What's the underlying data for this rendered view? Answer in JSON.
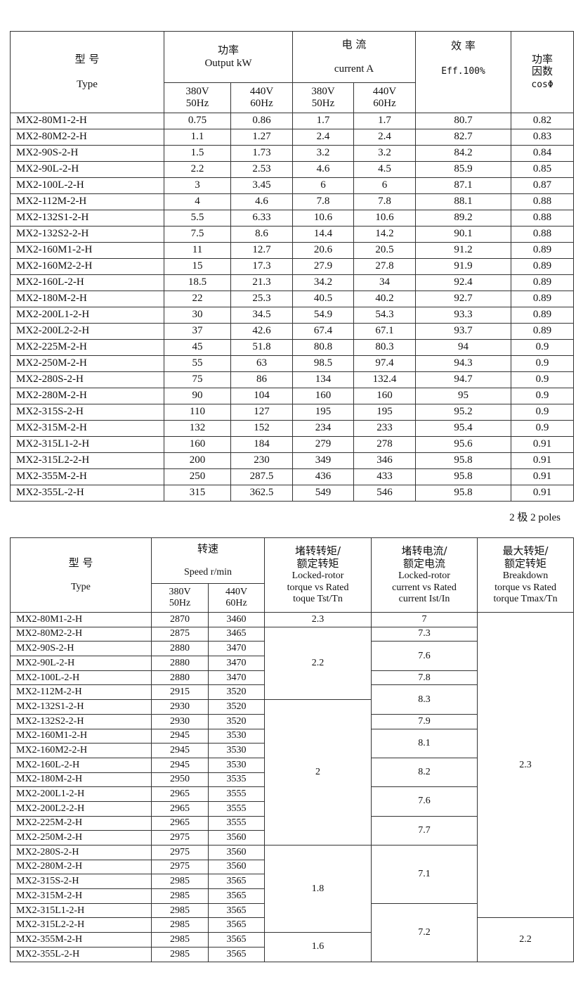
{
  "table1": {
    "headers": {
      "type_cn": "型 号",
      "type_en": "Type",
      "output_cn": "功率",
      "output_en": "Output  kW",
      "current_cn": "电 流",
      "current_en": "current    A",
      "eff_cn": "效 率",
      "eff_en": "Eff.100%",
      "pf_cn": "功率因数",
      "pf_en": "cosΦ",
      "v1": "380V",
      "f1": "50Hz",
      "v2": "440V",
      "f2": "60Hz"
    },
    "rows": [
      [
        "MX2-80M1-2-H",
        "0.75",
        "0.86",
        "1.7",
        "1.7",
        "80.7",
        "0.82"
      ],
      [
        "MX2-80M2-2-H",
        "1.1",
        "1.27",
        "2.4",
        "2.4",
        "82.7",
        "0.83"
      ],
      [
        "MX2-90S-2-H",
        "1.5",
        "1.73",
        "3.2",
        "3.2",
        "84.2",
        "0.84"
      ],
      [
        "MX2-90L-2-H",
        "2.2",
        "2.53",
        "4.6",
        "4.5",
        "85.9",
        "0.85"
      ],
      [
        "MX2-100L-2-H",
        "3",
        "3.45",
        "6",
        "6",
        "87.1",
        "0.87"
      ],
      [
        "MX2-112M-2-H",
        "4",
        "4.6",
        "7.8",
        "7.8",
        "88.1",
        "0.88"
      ],
      [
        "MX2-132S1-2-H",
        "5.5",
        "6.33",
        "10.6",
        "10.6",
        "89.2",
        "0.88"
      ],
      [
        "MX2-132S2-2-H",
        "7.5",
        "8.6",
        "14.4",
        "14.2",
        "90.1",
        "0.88"
      ],
      [
        "MX2-160M1-2-H",
        "11",
        "12.7",
        "20.6",
        "20.5",
        "91.2",
        "0.89"
      ],
      [
        "MX2-160M2-2-H",
        "15",
        "17.3",
        "27.9",
        "27.8",
        "91.9",
        "0.89"
      ],
      [
        "MX2-160L-2-H",
        "18.5",
        "21.3",
        "34.2",
        "34",
        "92.4",
        "0.89"
      ],
      [
        "MX2-180M-2-H",
        "22",
        "25.3",
        "40.5",
        "40.2",
        "92.7",
        "0.89"
      ],
      [
        "MX2-200L1-2-H",
        "30",
        "34.5",
        "54.9",
        "54.3",
        "93.3",
        "0.89"
      ],
      [
        "MX2-200L2-2-H",
        "37",
        "42.6",
        "67.4",
        "67.1",
        "93.7",
        "0.89"
      ],
      [
        "MX2-225M-2-H",
        "45",
        "51.8",
        "80.8",
        "80.3",
        "94",
        "0.9"
      ],
      [
        "MX2-250M-2-H",
        "55",
        "63",
        "98.5",
        "97.4",
        "94.3",
        "0.9"
      ],
      [
        "MX2-280S-2-H",
        "75",
        "86",
        "134",
        "132.4",
        "94.7",
        "0.9"
      ],
      [
        "MX2-280M-2-H",
        "90",
        "104",
        "160",
        "160",
        "95",
        "0.9"
      ],
      [
        "MX2-315S-2-H",
        "110",
        "127",
        "195",
        "195",
        "95.2",
        "0.9"
      ],
      [
        "MX2-315M-2-H",
        "132",
        "152",
        "234",
        "233",
        "95.4",
        "0.9"
      ],
      [
        "MX2-315L1-2-H",
        "160",
        "184",
        "279",
        "278",
        "95.6",
        "0.91"
      ],
      [
        "MX2-315L2-2-H",
        "200",
        "230",
        "349",
        "346",
        "95.8",
        "0.91"
      ],
      [
        "MX2-355M-2-H",
        "250",
        "287.5",
        "436",
        "433",
        "95.8",
        "0.91"
      ],
      [
        "MX2-355L-2-H",
        "315",
        "362.5",
        "549",
        "546",
        "95.8",
        "0.91"
      ]
    ]
  },
  "poles_label": "2 极    2 poles",
  "table2": {
    "headers": {
      "type_cn": "型 号",
      "type_en": "Type",
      "speed_cn": "转速",
      "speed_en": "Speed r/min",
      "v1": "380V",
      "f1": "50Hz",
      "v2": "440V",
      "f2": "60Hz",
      "tst_cn1": "堵转转矩/",
      "tst_cn2": "额定转矩",
      "tst_en1": "Locked-rotor",
      "tst_en2": "torque vs Rated",
      "tst_en3": "toque    Tst/Tn",
      "ist_cn1": "堵转电流/",
      "ist_cn2": "额定电流",
      "ist_en1": "Locked-rotor",
      "ist_en2": "current vs Rated",
      "ist_en3": "current Ist/In",
      "tmax_cn1": "最大转矩/",
      "tmax_cn2": "额定转矩",
      "tmax_en1": "Breakdown",
      "tmax_en2": "torque vs Rated",
      "tmax_en3": "torque Tmax/Tn"
    },
    "rows": [
      [
        "MX2-80M1-2-H",
        "2870",
        "3460"
      ],
      [
        "MX2-80M2-2-H",
        "2875",
        "3465"
      ],
      [
        "MX2-90S-2-H",
        "2880",
        "3470"
      ],
      [
        "MX2-90L-2-H",
        "2880",
        "3470"
      ],
      [
        "MX2-100L-2-H",
        "2880",
        "3470"
      ],
      [
        "MX2-112M-2-H",
        "2915",
        "3520"
      ],
      [
        "MX2-132S1-2-H",
        "2930",
        "3520"
      ],
      [
        "MX2-132S2-2-H",
        "2930",
        "3520"
      ],
      [
        "MX2-160M1-2-H",
        "2945",
        "3530"
      ],
      [
        "MX2-160M2-2-H",
        "2945",
        "3530"
      ],
      [
        "MX2-160L-2-H",
        "2945",
        "3530"
      ],
      [
        "MX2-180M-2-H",
        "2950",
        "3535"
      ],
      [
        "MX2-200L1-2-H",
        "2965",
        "3555"
      ],
      [
        "MX2-200L2-2-H",
        "2965",
        "3555"
      ],
      [
        "MX2-225M-2-H",
        "2965",
        "3555"
      ],
      [
        "MX2-250M-2-H",
        "2975",
        "3560"
      ],
      [
        "MX2-280S-2-H",
        "2975",
        "3560"
      ],
      [
        "MX2-280M-2-H",
        "2975",
        "3560"
      ],
      [
        "MX2-315S-2-H",
        "2985",
        "3565"
      ],
      [
        "MX2-315M-2-H",
        "2985",
        "3565"
      ],
      [
        "MX2-315L1-2-H",
        "2985",
        "3565"
      ],
      [
        "MX2-315L2-2-H",
        "2985",
        "3565"
      ],
      [
        "MX2-355M-2-H",
        "2985",
        "3565"
      ],
      [
        "MX2-355L-2-H",
        "2985",
        "3565"
      ]
    ],
    "tst_groups": [
      {
        "value": "2.3",
        "rows": 1
      },
      {
        "value": "2.2",
        "rows": 5
      },
      {
        "value": "2",
        "rows": 10
      },
      {
        "value": "1.8",
        "rows": 6
      },
      {
        "value": "1.6",
        "rows": 2
      }
    ],
    "ist_groups": [
      {
        "value": "7",
        "rows": 1
      },
      {
        "value": "7.3",
        "rows": 1
      },
      {
        "value": "7.6",
        "rows": 2
      },
      {
        "value": "7.8",
        "rows": 1
      },
      {
        "value": "8.3",
        "rows": 2
      },
      {
        "value": "7.9",
        "rows": 1
      },
      {
        "value": "8.1",
        "rows": 2
      },
      {
        "value": "8.2",
        "rows": 2
      },
      {
        "value": "7.6",
        "rows": 2
      },
      {
        "value": "7.7",
        "rows": 2
      },
      {
        "value": "7.1",
        "rows": 4
      },
      {
        "value": "7.2",
        "rows": 4
      }
    ],
    "tmax_groups": [
      {
        "value": "2.3",
        "rows": 21
      },
      {
        "value": "2.2",
        "rows": 3
      }
    ]
  }
}
